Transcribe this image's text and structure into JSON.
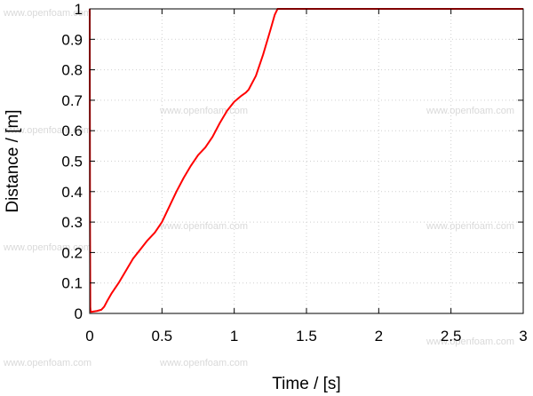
{
  "watermark_text": "www.openfoam.com",
  "chart_data": {
    "type": "line",
    "xlabel": "Time / [s]",
    "ylabel": "Distance / [m]",
    "xlim": [
      0,
      3
    ],
    "ylim": [
      0,
      1
    ],
    "x_ticks": [
      "0",
      "0.5",
      "1",
      "1.5",
      "2",
      "2.5",
      "3"
    ],
    "x_tick_values": [
      0,
      0.5,
      1,
      1.5,
      2,
      2.5,
      3
    ],
    "y_ticks": [
      "0",
      "0.1",
      "0.2",
      "0.3",
      "0.4",
      "0.5",
      "0.6",
      "0.7",
      "0.8",
      "0.9",
      "1"
    ],
    "y_tick_values": [
      0,
      0.1,
      0.2,
      0.3,
      0.4,
      0.5,
      0.6,
      0.7,
      0.8,
      0.9,
      1
    ],
    "grid": true,
    "series": [
      {
        "color": "#ff0000",
        "x": [
          0,
          0.002,
          0.004,
          0.006,
          0.01,
          0.05,
          0.08,
          0.1,
          0.12,
          0.15,
          0.2,
          0.25,
          0.3,
          0.35,
          0.4,
          0.45,
          0.5,
          0.55,
          0.6,
          0.65,
          0.7,
          0.75,
          0.8,
          0.85,
          0.9,
          0.95,
          1.0,
          1.05,
          1.08,
          1.1,
          1.15,
          1.2,
          1.25,
          1.28,
          1.3,
          1.5,
          2.0,
          2.5,
          3.0
        ],
        "y": [
          1.0,
          0.3,
          0.02,
          0.008,
          0.005,
          0.008,
          0.012,
          0.022,
          0.04,
          0.065,
          0.1,
          0.14,
          0.18,
          0.21,
          0.24,
          0.265,
          0.3,
          0.35,
          0.4,
          0.445,
          0.485,
          0.52,
          0.545,
          0.58,
          0.625,
          0.665,
          0.695,
          0.715,
          0.725,
          0.735,
          0.78,
          0.85,
          0.93,
          0.98,
          1.0,
          1.0,
          1.0,
          1.0,
          1.0
        ]
      }
    ]
  }
}
